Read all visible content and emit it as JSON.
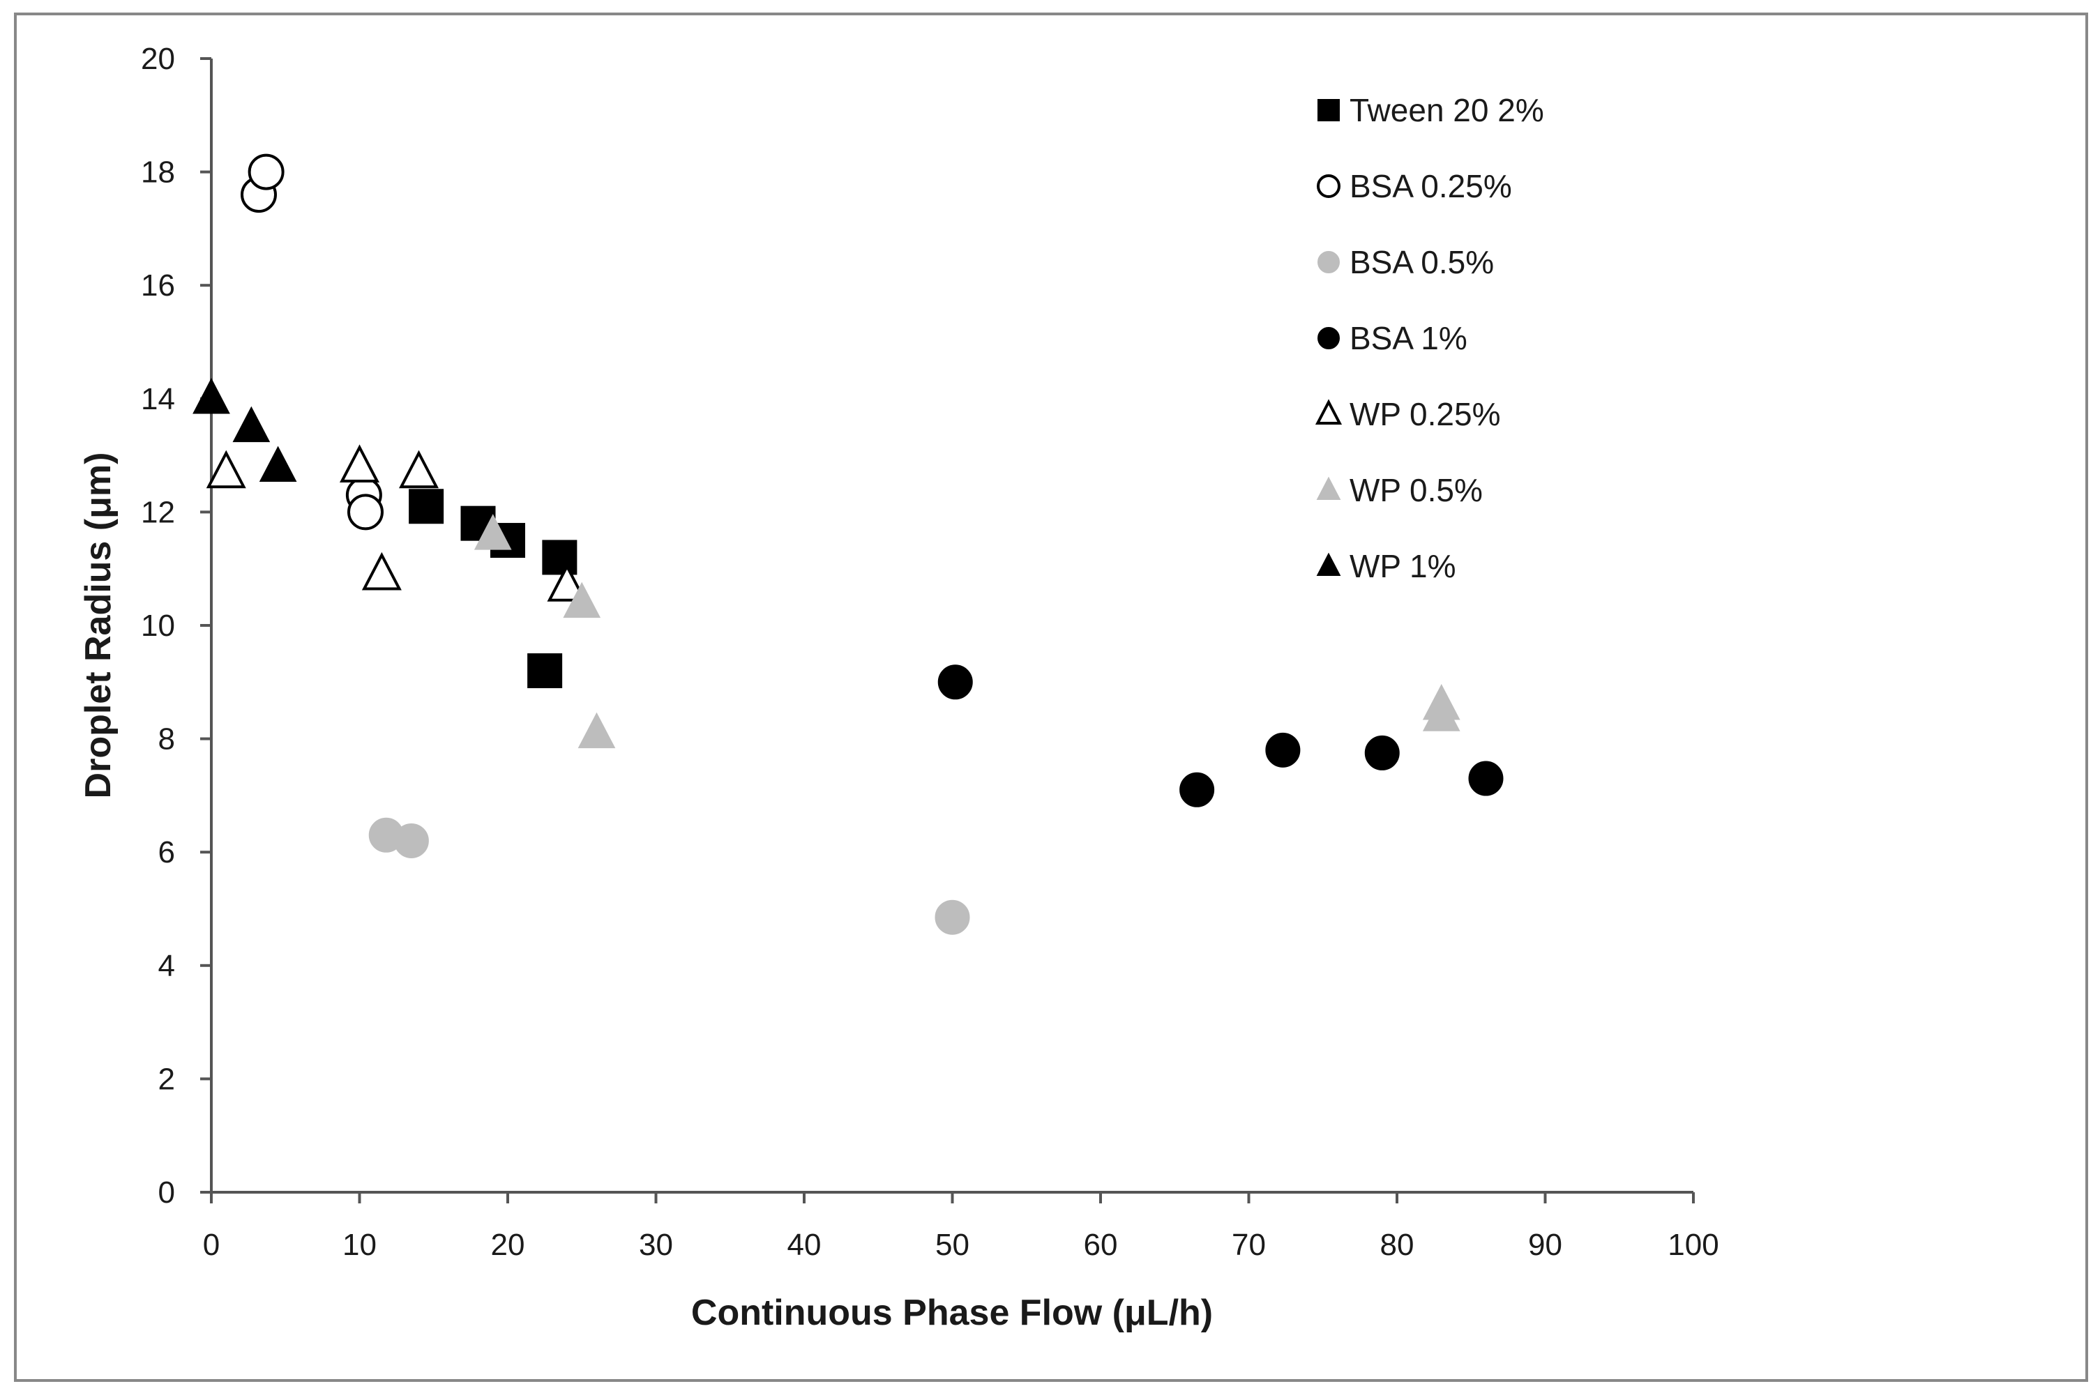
{
  "chart_data": {
    "type": "scatter",
    "title": "",
    "xlabel": "Continuous Phase Flow (μL/h)",
    "ylabel": "Droplet Radius (μm)",
    "xlim": [
      0,
      100
    ],
    "ylim": [
      0,
      20
    ],
    "xticks": [
      0,
      10,
      20,
      30,
      40,
      50,
      60,
      70,
      80,
      90,
      100
    ],
    "yticks": [
      0,
      2,
      4,
      6,
      8,
      10,
      12,
      14,
      16,
      18,
      20
    ],
    "grid": false,
    "legend_position": "top-right",
    "series": [
      {
        "name": "Tween 20 2%",
        "marker": "square",
        "fill": "#000000",
        "stroke": "#000000",
        "points": [
          [
            14.5,
            12.1
          ],
          [
            18,
            11.8
          ],
          [
            20,
            11.5
          ],
          [
            23.5,
            11.2
          ],
          [
            22.5,
            9.2
          ]
        ]
      },
      {
        "name": "BSA 0.25%",
        "marker": "circle",
        "fill": "#ffffff",
        "stroke": "#000000",
        "points": [
          [
            3.2,
            17.6
          ],
          [
            3.7,
            18.0
          ],
          [
            10.3,
            12.3
          ],
          [
            10.4,
            12.0
          ]
        ]
      },
      {
        "name": "BSA 0.5%",
        "marker": "circle",
        "fill": "#bdbdbd",
        "stroke": "#bdbdbd",
        "points": [
          [
            11.8,
            6.3
          ],
          [
            13.5,
            6.2
          ],
          [
            50,
            4.85
          ]
        ]
      },
      {
        "name": "BSA 1%",
        "marker": "circle",
        "fill": "#000000",
        "stroke": "#000000",
        "points": [
          [
            50.2,
            9.0
          ],
          [
            66.5,
            7.1
          ],
          [
            72.3,
            7.8
          ],
          [
            79,
            7.75
          ],
          [
            86,
            7.3
          ]
        ]
      },
      {
        "name": "WP 0.25%",
        "marker": "triangle",
        "fill": "#ffffff",
        "stroke": "#000000",
        "points": [
          [
            1,
            12.7
          ],
          [
            10,
            12.8
          ],
          [
            14,
            12.7
          ],
          [
            11.5,
            10.9
          ],
          [
            24,
            10.7
          ]
        ]
      },
      {
        "name": "WP 0.5%",
        "marker": "triangle",
        "fill": "#bdbdbd",
        "stroke": "#bdbdbd",
        "points": [
          [
            19,
            11.6
          ],
          [
            25,
            10.4
          ],
          [
            26,
            8.1
          ],
          [
            83,
            8.6
          ],
          [
            83,
            8.4
          ]
        ]
      },
      {
        "name": "WP 1%",
        "marker": "triangle",
        "fill": "#000000",
        "stroke": "#000000",
        "points": [
          [
            0,
            14.0
          ],
          [
            2.7,
            13.5
          ],
          [
            4.5,
            12.8
          ]
        ]
      }
    ]
  }
}
